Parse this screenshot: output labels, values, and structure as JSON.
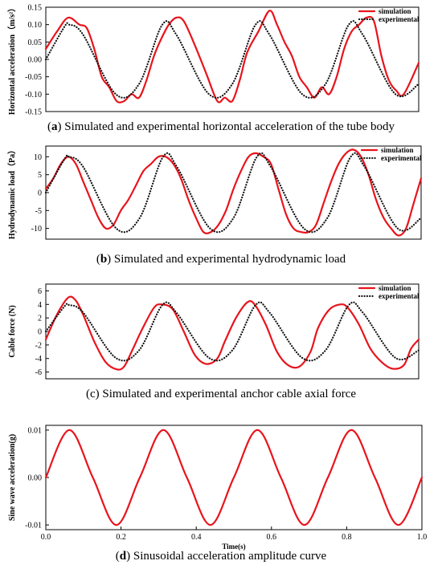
{
  "colors": {
    "simulation": "#e8141c",
    "experimental": "#111111",
    "sine": "#e8141c"
  },
  "chart_data": [
    {
      "type": "line",
      "panel_letter": "a",
      "caption": "Simulated and experimental horizontal acceleration of the tube body",
      "ylabel": "Horizontal acceleration（m/s²）",
      "xlabel": "",
      "ylim": [
        -0.15,
        0.15
      ],
      "yticks": [
        -0.15,
        -0.1,
        -0.05,
        0.0,
        0.05,
        0.1,
        0.15
      ],
      "ytick_labels": [
        "-0.15",
        "-0.10",
        "-0.05",
        "0.00",
        "0.05",
        "0.10",
        "0.15"
      ],
      "xlim": [
        0,
        1
      ],
      "grid": false,
      "legend_position": "top-right",
      "series": [
        {
          "name": "simulation",
          "style": "solid",
          "x": [
            0,
            0.03,
            0.06,
            0.09,
            0.11,
            0.13,
            0.15,
            0.17,
            0.19,
            0.21,
            0.23,
            0.25,
            0.27,
            0.29,
            0.31,
            0.33,
            0.35,
            0.37,
            0.4,
            0.43,
            0.46,
            0.48,
            0.5,
            0.52,
            0.54,
            0.57,
            0.6,
            0.62,
            0.64,
            0.66,
            0.68,
            0.7,
            0.72,
            0.74,
            0.76,
            0.78,
            0.8,
            0.82,
            0.84,
            0.86,
            0.88,
            0.9,
            0.92,
            0.94,
            0.96,
            1.0
          ],
          "y": [
            0.03,
            0.08,
            0.12,
            0.1,
            0.09,
            0.03,
            -0.05,
            -0.08,
            -0.12,
            -0.12,
            -0.1,
            -0.11,
            -0.06,
            0.01,
            0.06,
            0.1,
            0.12,
            0.11,
            0.04,
            -0.04,
            -0.12,
            -0.11,
            -0.12,
            -0.06,
            0.02,
            0.08,
            0.14,
            0.1,
            0.05,
            0.01,
            -0.05,
            -0.08,
            -0.11,
            -0.08,
            -0.1,
            -0.05,
            0.03,
            0.08,
            0.1,
            0.12,
            0.11,
            0.01,
            -0.06,
            -0.09,
            -0.1,
            -0.01
          ]
        },
        {
          "name": "experimental",
          "style": "dotted",
          "x": [
            0,
            0.05,
            0.0625,
            0.1,
            0.1875,
            0.25,
            0.3125,
            0.35,
            0.4375,
            0.5,
            0.5625,
            0.6,
            0.6875,
            0.75,
            0.8125,
            0.85,
            0.9375,
            1.0
          ],
          "y": [
            0.0,
            0.094,
            0.1,
            0.071,
            -0.1,
            -0.071,
            0.1,
            0.071,
            -0.1,
            -0.071,
            0.1,
            0.071,
            -0.1,
            -0.071,
            0.1,
            0.071,
            -0.1,
            -0.071
          ]
        }
      ]
    },
    {
      "type": "line",
      "panel_letter": "b",
      "caption": "Simulated and experimental hydrodynamic load",
      "ylabel": "Hydrodynamic load（Pa）",
      "xlabel": "",
      "ylim": [
        -13,
        13
      ],
      "yticks": [
        -10,
        -5,
        0,
        5,
        10
      ],
      "ytick_labels": [
        "-10",
        "-5",
        "0",
        "5",
        "10"
      ],
      "xlim": [
        0,
        1
      ],
      "grid": false,
      "legend_position": "top-right",
      "series": [
        {
          "name": "simulation",
          "style": "solid",
          "x": [
            0,
            0.02,
            0.04,
            0.06,
            0.08,
            0.1,
            0.12,
            0.14,
            0.16,
            0.18,
            0.2,
            0.22,
            0.24,
            0.26,
            0.28,
            0.3,
            0.32,
            0.34,
            0.36,
            0.38,
            0.4,
            0.42,
            0.44,
            0.46,
            0.48,
            0.5,
            0.52,
            0.54,
            0.56,
            0.58,
            0.6,
            0.62,
            0.64,
            0.66,
            0.68,
            0.7,
            0.72,
            0.74,
            0.76,
            0.78,
            0.8,
            0.82,
            0.84,
            0.86,
            0.88,
            0.9,
            0.92,
            0.94,
            0.96,
            0.98,
            1.0
          ],
          "y": [
            1,
            4,
            8,
            10,
            8,
            3,
            -2,
            -7,
            -10,
            -9,
            -5,
            -2,
            2,
            6,
            8,
            10,
            10,
            8,
            4,
            -2,
            -7,
            -11,
            -11,
            -9,
            -5,
            1,
            6,
            10,
            11,
            10,
            8,
            1,
            -6,
            -10,
            -11,
            -11,
            -9,
            -3,
            3,
            8,
            11,
            12,
            10,
            5,
            -2,
            -7,
            -10,
            -12,
            -10,
            -3,
            4
          ]
        },
        {
          "name": "experimental",
          "style": "dotted",
          "x": [
            0,
            0.05,
            0.0625,
            0.1,
            0.1875,
            0.25,
            0.3125,
            0.35,
            0.4375,
            0.5,
            0.5625,
            0.6,
            0.6875,
            0.75,
            0.8125,
            0.85,
            0.9375,
            1.0
          ],
          "y": [
            0,
            9.4,
            10,
            7.1,
            -10,
            -7.1,
            10,
            7.1,
            -10,
            -7.1,
            10,
            7.1,
            -10,
            -7.1,
            10,
            7.1,
            -10,
            -7.1
          ]
        }
      ]
    },
    {
      "type": "line",
      "panel_letter": "c",
      "caption": "Simulated and experimental anchor cable axial force",
      "ylabel": "Cable force (N)",
      "xlabel": "",
      "ylim": [
        -7,
        7
      ],
      "yticks": [
        -6,
        -4,
        -2,
        0,
        2,
        4,
        6
      ],
      "ytick_labels": [
        "-6",
        "-4",
        "-2",
        "0",
        "2",
        "4",
        "6"
      ],
      "xlim": [
        0,
        1
      ],
      "grid": false,
      "legend_position": "top-right",
      "series": [
        {
          "name": "simulation",
          "style": "solid",
          "x": [
            0,
            0.03,
            0.06,
            0.08,
            0.1,
            0.13,
            0.16,
            0.19,
            0.21,
            0.23,
            0.26,
            0.29,
            0.31,
            0.34,
            0.37,
            0.4,
            0.43,
            0.46,
            0.48,
            0.51,
            0.54,
            0.56,
            0.59,
            0.62,
            0.65,
            0.68,
            0.71,
            0.73,
            0.76,
            0.79,
            0.81,
            0.84,
            0.87,
            0.9,
            0.93,
            0.96,
            0.98,
            1.0
          ],
          "y": [
            -1.2,
            2.5,
            5.0,
            4.6,
            2.5,
            -1.5,
            -4.5,
            -5.6,
            -5.2,
            -3.0,
            0.5,
            3.5,
            4.0,
            3.3,
            0.0,
            -3.5,
            -4.8,
            -4.0,
            -1.5,
            2.0,
            4.3,
            4.0,
            1.0,
            -3.0,
            -5.0,
            -5.2,
            -3.0,
            0.5,
            3.2,
            4.0,
            3.5,
            1.0,
            -2.5,
            -4.5,
            -5.5,
            -5.0,
            -2.5,
            -1.2
          ]
        },
        {
          "name": "experimental",
          "style": "dotted",
          "x": [
            0,
            0.05,
            0.0625,
            0.1,
            0.1875,
            0.25,
            0.3125,
            0.35,
            0.4375,
            0.5,
            0.5625,
            0.6,
            0.6875,
            0.75,
            0.8125,
            0.85,
            0.9375,
            1.0
          ],
          "y": [
            0,
            3.7,
            3.9,
            2.8,
            -3.9,
            -2.8,
            3.9,
            2.8,
            -3.9,
            -2.8,
            3.9,
            2.8,
            -3.9,
            -2.8,
            3.9,
            2.8,
            -3.9,
            -2.8
          ]
        }
      ]
    },
    {
      "type": "line",
      "panel_letter": "d",
      "caption": "Sinusoidal acceleration amplitude curve",
      "ylabel": "Sine wave acceleration(g)",
      "xlabel": "Time(s)",
      "ylim": [
        -0.011,
        0.011
      ],
      "yticks": [
        -0.01,
        0.0,
        0.01
      ],
      "ytick_labels": [
        "-0.01",
        "0.00",
        "0.01"
      ],
      "xlim": [
        0,
        1
      ],
      "xticks": [
        0.0,
        0.2,
        0.4,
        0.6,
        0.8,
        1.0
      ],
      "xtick_labels": [
        "0.0",
        "0.2",
        "0.4",
        "0.6",
        "0.8",
        "1.0"
      ],
      "grid": false,
      "series": [
        {
          "style": "solid",
          "x": [
            0,
            0.0625,
            0.125,
            0.1875,
            0.25,
            0.3125,
            0.375,
            0.4375,
            0.5,
            0.5625,
            0.625,
            0.6875,
            0.75,
            0.8125,
            0.875,
            0.9375,
            1.0
          ],
          "y": [
            0.0,
            0.01,
            0.0,
            -0.01,
            0.0,
            0.01,
            0.0,
            -0.01,
            0.0,
            0.01,
            0.0,
            -0.01,
            0.0,
            0.01,
            0.0,
            -0.01,
            0.0
          ]
        }
      ]
    }
  ]
}
